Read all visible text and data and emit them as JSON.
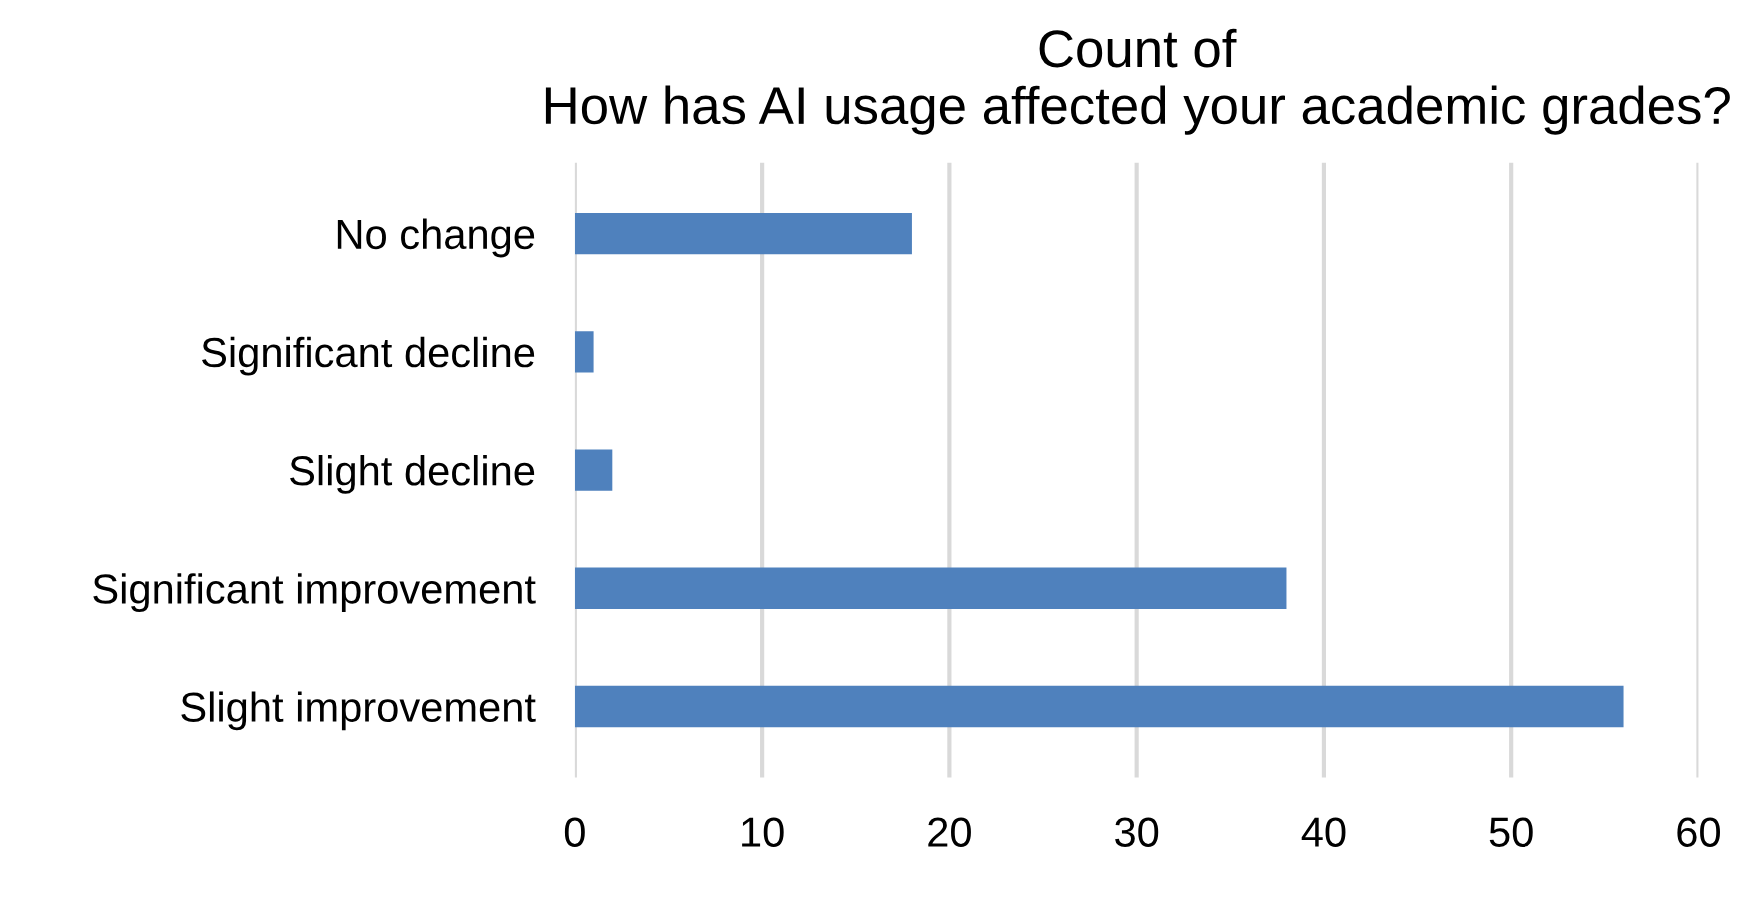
{
  "chart_data": {
    "type": "bar",
    "orientation": "horizontal",
    "title": "Count of\nHow has AI usage affected your academic grades?",
    "categories": [
      "No change",
      "Significant decline",
      "Slight decline",
      "Significant improvement",
      "Slight improvement"
    ],
    "values": [
      18,
      1,
      2,
      38,
      56
    ],
    "color": "#4f81bd",
    "xlim": [
      0,
      60
    ],
    "xticks": [
      0,
      10,
      20,
      30,
      40,
      50,
      60
    ],
    "grid": "x"
  }
}
